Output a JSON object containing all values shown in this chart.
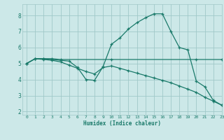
{
  "line1_x": [
    0,
    1,
    2,
    3,
    4,
    5,
    6,
    7,
    8,
    9,
    10,
    11,
    12,
    13,
    14,
    15,
    16,
    17,
    18,
    19,
    20,
    21,
    22,
    23
  ],
  "line1_y": [
    5.0,
    5.3,
    5.3,
    5.25,
    5.2,
    5.15,
    4.75,
    4.0,
    3.95,
    4.8,
    6.2,
    6.6,
    7.15,
    7.55,
    7.85,
    8.1,
    8.1,
    7.0,
    6.0,
    5.85,
    3.9,
    3.55,
    2.7,
    2.4
  ],
  "line2_x": [
    0,
    1,
    2,
    3,
    4,
    10,
    20,
    23
  ],
  "line2_y": [
    5.0,
    5.3,
    5.3,
    5.3,
    5.25,
    5.25,
    5.25,
    5.25
  ],
  "line3_x": [
    0,
    1,
    2,
    3,
    4,
    5,
    6,
    7,
    8,
    9,
    10,
    11,
    12,
    13,
    14,
    15,
    16,
    17,
    18,
    19,
    20,
    21,
    22,
    23
  ],
  "line3_y": [
    5.0,
    5.3,
    5.25,
    5.2,
    5.1,
    4.9,
    4.7,
    4.5,
    4.35,
    4.75,
    4.85,
    4.7,
    4.55,
    4.4,
    4.25,
    4.1,
    3.95,
    3.8,
    3.6,
    3.4,
    3.2,
    2.9,
    2.65,
    2.4
  ],
  "line_color": "#1a7a6a",
  "bg_color": "#cce8e8",
  "grid_color": "#a0c8c8",
  "xlabel": "Humidex (Indice chaleur)",
  "xlim": [
    -0.5,
    23
  ],
  "ylim": [
    1.8,
    8.7
  ],
  "yticks": [
    2,
    3,
    4,
    5,
    6,
    7,
    8
  ],
  "xticks": [
    0,
    1,
    2,
    3,
    4,
    5,
    6,
    7,
    8,
    9,
    10,
    11,
    12,
    13,
    14,
    15,
    16,
    17,
    18,
    19,
    20,
    21,
    22,
    23
  ],
  "marker": "+"
}
